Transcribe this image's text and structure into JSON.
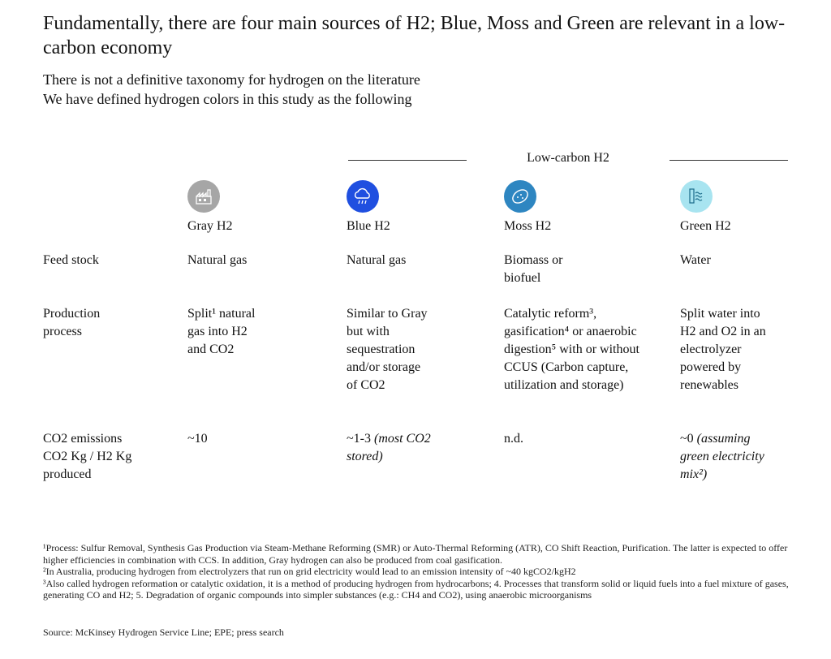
{
  "title": "Fundamentally, there are four main sources of H2; Blue, Moss and Green are relevant in a low-carbon economy",
  "subtitle_lines": [
    "There is not a definitive taxonomy for hydrogen on the literature",
    "We have defined hydrogen colors in this study as the following"
  ],
  "group_label": "Low-carbon H2",
  "columns": [
    {
      "name": "Gray H2",
      "icon": "factory-icon",
      "color": "#a6a6a6"
    },
    {
      "name": "Blue H2",
      "icon": "cloud-rain-icon",
      "color": "#1f4fe0"
    },
    {
      "name": "Moss H2",
      "icon": "seed-icon",
      "color": "#2e86c1"
    },
    {
      "name": "Green H2",
      "icon": "water-wave-icon",
      "color": "#a8e4f0"
    }
  ],
  "rows": {
    "feedstock": {
      "label": "Feed stock",
      "gray": "Natural gas",
      "blue": "Natural gas",
      "moss": "Biomass or\nbiofuel",
      "green": "Water"
    },
    "process": {
      "label": "Production\nprocess",
      "gray": "Split¹ natural\ngas into H2\nand CO2",
      "blue": "Similar to Gray\nbut with\nsequestration\nand/or storage\nof CO2",
      "moss": "Catalytic reform³,\ngasification⁴ or anaerobic\ndigestion⁵ with or without\nCCUS (Carbon capture,\nutilization and storage)",
      "green": "Split water into\nH2 and O2 in an\nelectrolyzer\npowered by\nrenewables"
    },
    "emissions": {
      "label": "CO2 emissions\nCO2 Kg / H2 Kg\nproduced",
      "gray": "~10",
      "blue_value": "~1-3",
      "blue_note": "(most CO2\nstored)",
      "moss": "n.d.",
      "green_value": "~0",
      "green_note": "(assuming\ngreen electricity\nmix²)"
    }
  },
  "footnotes": [
    "¹Process: Sulfur Removal, Synthesis Gas Production via Steam-Methane Reforming (SMR) or Auto-Thermal Reforming (ATR), CO Shift Reaction, Purification. The latter is expected to offer higher efficiencies in combination with CCS. In addition, Gray hydrogen can also be produced from coal gasification.",
    "²In Australia, producing hydrogen from electrolyzers that run on grid electricity would lead to an emission intensity of ~40 kgCO2/kgH2",
    "³Also called hydrogen reformation or catalytic oxidation, it is a method of producing hydrogen from hydrocarbons; 4. Processes that transform solid or liquid fuels into a fuel mixture of gases, generating CO and H2; 5. Degradation of organic compounds into simpler substances (e.g.: CH4 and CO2), using anaerobic microorganisms"
  ],
  "source": "Source: McKinsey Hydrogen Service Line; EPE; press search"
}
